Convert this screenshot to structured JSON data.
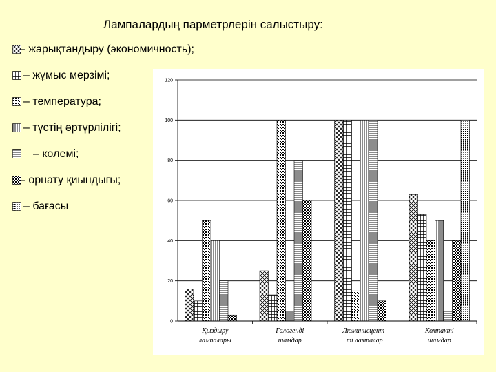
{
  "slide": {
    "title": "Лампалардың парметрлерін салыстыру:"
  },
  "legend": [
    {
      "label": "– жарықтандыру (экономичность);",
      "pattern": "diag-cross"
    },
    {
      "label": " – жұмыс мерзімі;",
      "pattern": "grid"
    },
    {
      "label": " – температура;",
      "pattern": "dots"
    },
    {
      "label": " – түстің әртүрлілігі;",
      "pattern": "vlines"
    },
    {
      "label": "  – көлемі;",
      "pattern": "hlines"
    },
    {
      "label": "– орнату қиындығы;",
      "pattern": "checker"
    },
    {
      "label": " – бағасы",
      "pattern": "light-dots"
    }
  ],
  "chart_data": {
    "type": "bar",
    "categories": [
      [
        "Қыздыру",
        "лампалары"
      ],
      [
        "Галогенді",
        "шамдар"
      ],
      [
        "Люминисцент-",
        "ті лампалар"
      ],
      [
        "Компакті",
        "шамдар"
      ]
    ],
    "series": [
      {
        "pattern": "diag-cross",
        "values": [
          16,
          25,
          100,
          63
        ]
      },
      {
        "pattern": "grid",
        "values": [
          10,
          13,
          100,
          53
        ]
      },
      {
        "pattern": "dots",
        "values": [
          50,
          100,
          15,
          40
        ]
      },
      {
        "pattern": "vlines",
        "values": [
          40,
          5,
          100,
          50
        ]
      },
      {
        "pattern": "hlines",
        "values": [
          20,
          80,
          100,
          5
        ]
      },
      {
        "pattern": "checker",
        "values": [
          3,
          60,
          10,
          40
        ]
      },
      {
        "pattern": "light-dots",
        "values": [
          0,
          0,
          0,
          100
        ]
      }
    ],
    "yticks": [
      "0",
      "20",
      "40",
      "60",
      "80",
      "100",
      "120"
    ],
    "ylim": [
      0,
      120
    ],
    "grid": true
  }
}
